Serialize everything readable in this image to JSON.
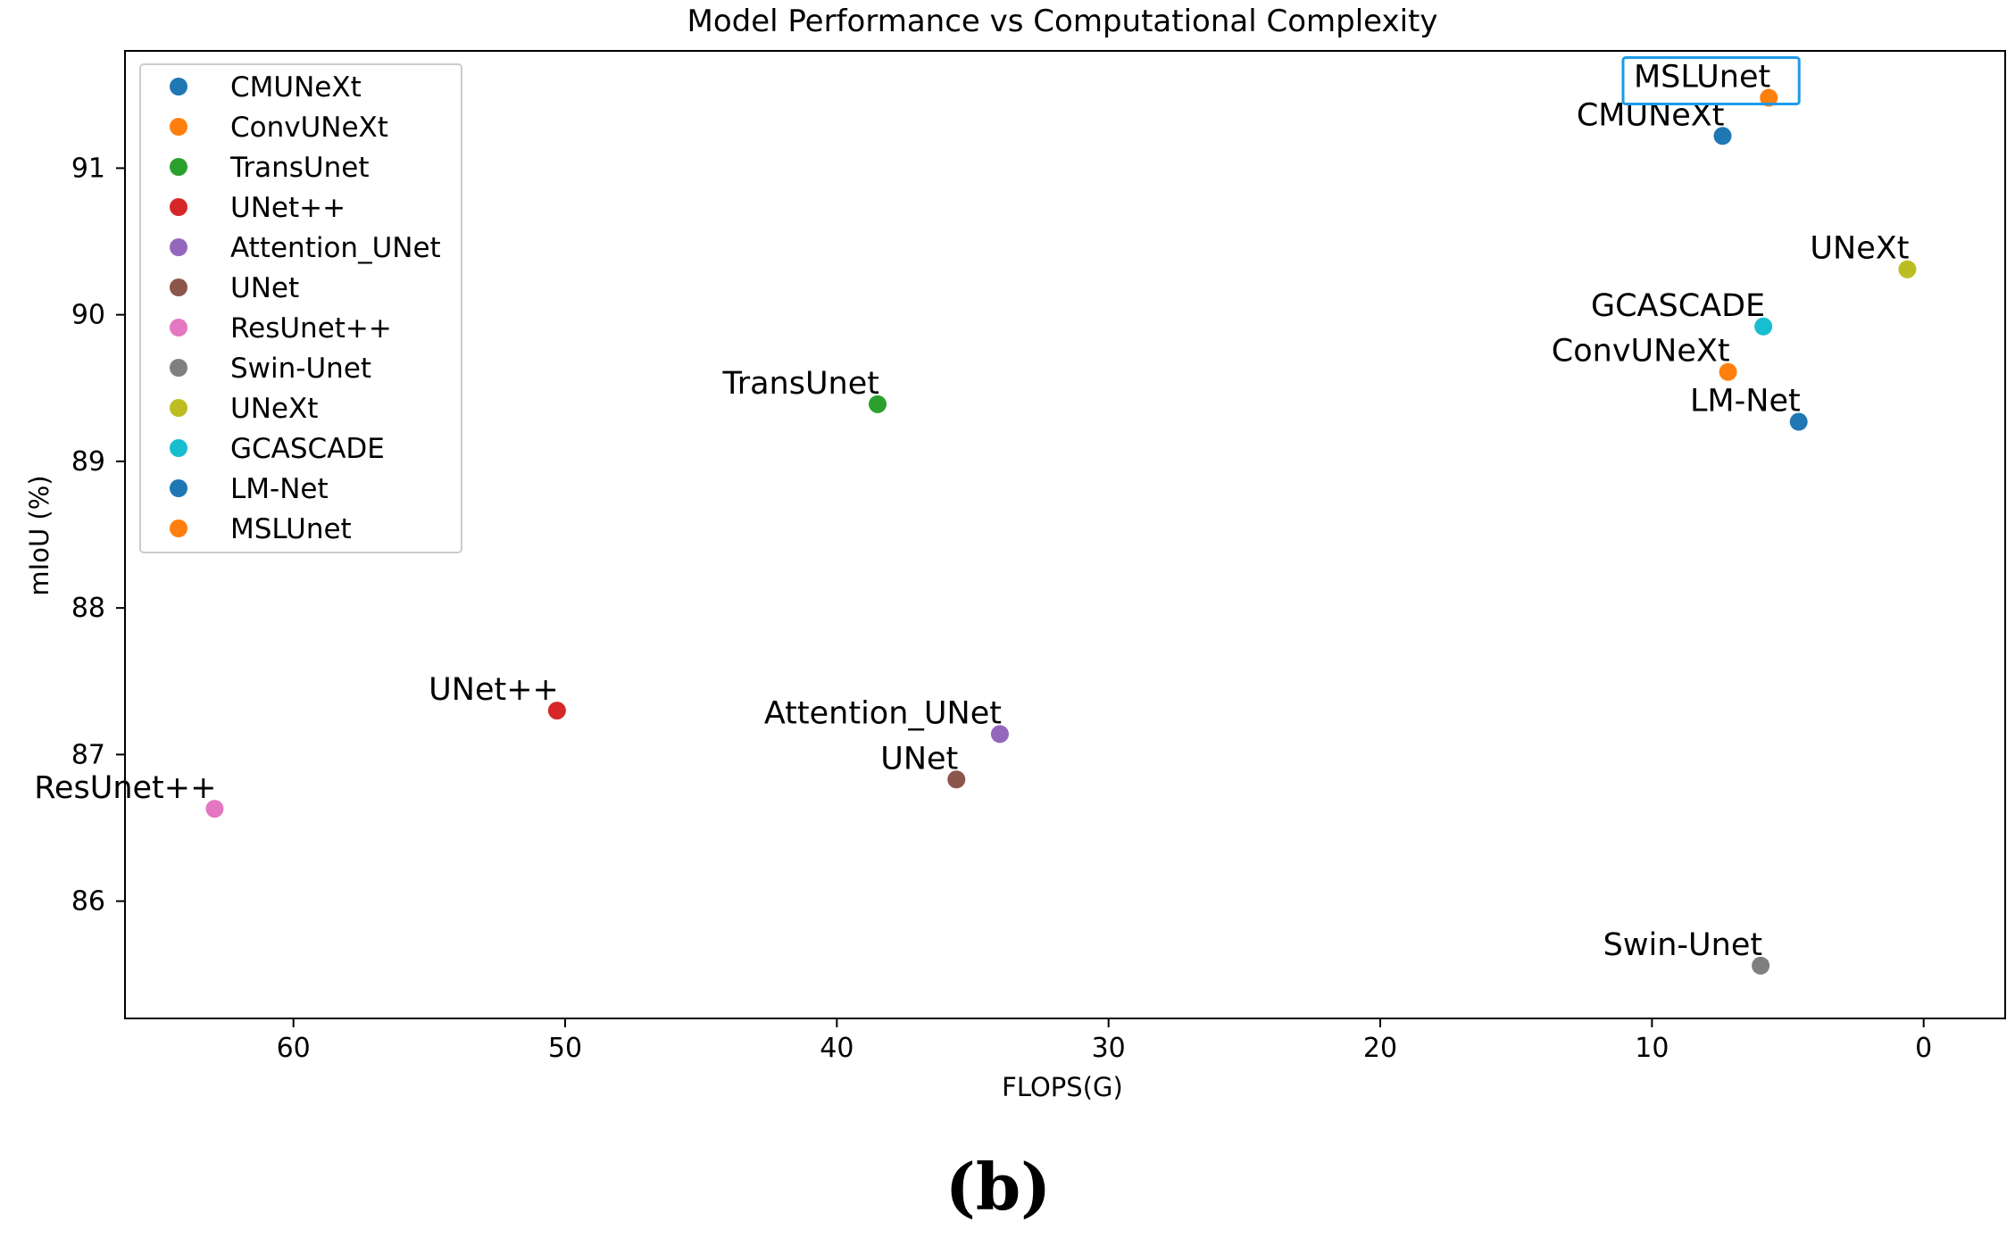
{
  "chart_data": {
    "type": "scatter",
    "title": "Model Performance vs Computational Complexity",
    "xlabel": "FLOPS(G)",
    "ylabel": "mIoU (%)",
    "xlim": [
      66.2,
      -3.0
    ],
    "ylim": [
      85.2,
      91.8
    ],
    "x_ticks": [
      60,
      50,
      40,
      30,
      20,
      10,
      0
    ],
    "y_ticks": [
      86,
      87,
      88,
      89,
      90,
      91
    ],
    "x_axis_inverted": true,
    "grid": false,
    "legend_position": "top-left",
    "highlighted_point": "MSLUnet",
    "highlight_color": "#1E9BE9",
    "series": [
      {
        "name": "CMUNeXt",
        "x": 7.4,
        "y": 91.22,
        "color": "#1F77B4"
      },
      {
        "name": "ConvUNeXt",
        "x": 7.2,
        "y": 89.61,
        "color": "#FF7F0E"
      },
      {
        "name": "TransUnet",
        "x": 38.5,
        "y": 89.39,
        "color": "#2CA02C"
      },
      {
        "name": "UNet++",
        "x": 50.3,
        "y": 87.3,
        "color": "#D62728"
      },
      {
        "name": "Attention_UNet",
        "x": 34.0,
        "y": 87.14,
        "color": "#9467BD"
      },
      {
        "name": "UNet",
        "x": 35.6,
        "y": 86.83,
        "color": "#8C564B"
      },
      {
        "name": "ResUnet++",
        "x": 62.9,
        "y": 86.63,
        "color": "#E377C2"
      },
      {
        "name": "Swin-Unet",
        "x": 6.0,
        "y": 85.56,
        "color": "#7F7F7F"
      },
      {
        "name": "UNeXt",
        "x": 0.6,
        "y": 90.31,
        "color": "#BCBD22"
      },
      {
        "name": "GCASCADE",
        "x": 5.9,
        "y": 89.92,
        "color": "#17BECF"
      },
      {
        "name": "LM-Net",
        "x": 4.6,
        "y": 89.27,
        "color": "#1F77B4"
      },
      {
        "name": "MSLUnet",
        "x": 5.7,
        "y": 91.48,
        "color": "#FF7F0E"
      }
    ]
  },
  "caption": "(b)"
}
